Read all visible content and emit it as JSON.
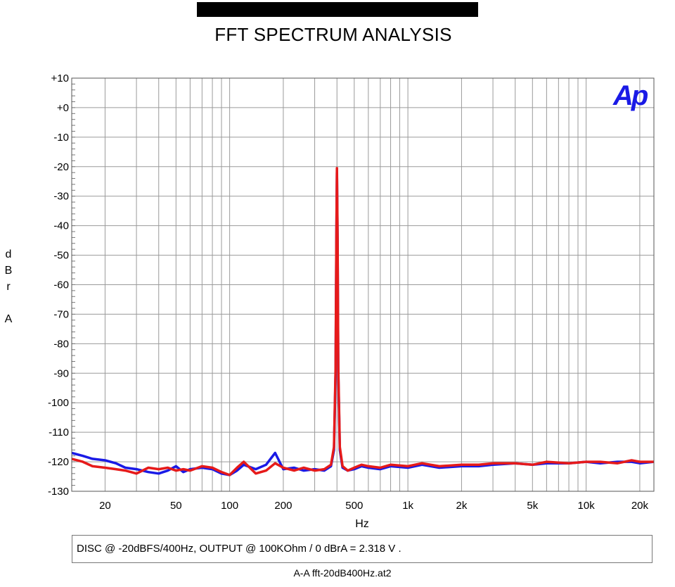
{
  "header": {
    "title": "FFT SPECTRUM ANALYSIS",
    "note": "DISC @ -20dBFS/400Hz, OUTPUT @ 100KOhm / 0 dBrA = 2.318 V .",
    "footer": "A-A fft-20dB400Hz.at2",
    "logo_text": "Ap"
  },
  "chart_data": {
    "type": "line",
    "title": "FFT SPECTRUM ANALYSIS",
    "xlabel": "Hz",
    "ylabel": "d\nB\nr\n\nA",
    "x_scale": "log",
    "xlim": [
      13,
      24000
    ],
    "ylim": [
      -130,
      10
    ],
    "grid": true,
    "x_ticks": [
      {
        "value": 20,
        "label": "20"
      },
      {
        "value": 50,
        "label": "50"
      },
      {
        "value": 100,
        "label": "100"
      },
      {
        "value": 200,
        "label": "200"
      },
      {
        "value": 500,
        "label": "500"
      },
      {
        "value": 1000,
        "label": "1k"
      },
      {
        "value": 2000,
        "label": "2k"
      },
      {
        "value": 5000,
        "label": "5k"
      },
      {
        "value": 10000,
        "label": "10k"
      },
      {
        "value": 20000,
        "label": "20k"
      }
    ],
    "y_ticks": [
      {
        "value": 10,
        "label": "+10"
      },
      {
        "value": 0,
        "label": "+0"
      },
      {
        "value": -10,
        "label": "-10"
      },
      {
        "value": -20,
        "label": "-20"
      },
      {
        "value": -30,
        "label": "-30"
      },
      {
        "value": -40,
        "label": "-40"
      },
      {
        "value": -50,
        "label": "-50"
      },
      {
        "value": -60,
        "label": "-60"
      },
      {
        "value": -70,
        "label": "-70"
      },
      {
        "value": -80,
        "label": "-80"
      },
      {
        "value": -90,
        "label": "-90"
      },
      {
        "value": -100,
        "label": "-100"
      },
      {
        "value": -110,
        "label": "-110"
      },
      {
        "value": -120,
        "label": "-120"
      },
      {
        "value": -130,
        "label": "-130"
      }
    ],
    "series": [
      {
        "color": "#1a1ae6",
        "x": [
          13,
          15,
          17,
          20,
          23,
          26,
          30,
          35,
          40,
          45,
          50,
          55,
          60,
          70,
          80,
          90,
          100,
          110,
          120,
          140,
          160,
          180,
          200,
          230,
          260,
          300,
          340,
          370,
          385,
          393,
          397,
          400,
          403,
          407,
          415,
          430,
          460,
          500,
          550,
          600,
          700,
          800,
          1000,
          1200,
          1500,
          2000,
          2500,
          3000,
          4000,
          5000,
          6000,
          8000,
          10000,
          12000,
          15000,
          18000,
          20000,
          24000
        ],
        "y": [
          -117,
          -118,
          -119,
          -119.5,
          -120.5,
          -122,
          -122.5,
          -123.5,
          -124,
          -123,
          -121.5,
          -123.5,
          -122.5,
          -122,
          -122.5,
          -124,
          -124.5,
          -123,
          -121,
          -122.5,
          -121,
          -117,
          -122.5,
          -122,
          -123,
          -122.5,
          -123,
          -121.5,
          -116,
          -90,
          -45,
          -22,
          -45,
          -90,
          -116,
          -122,
          -123,
          -122.5,
          -121.5,
          -122,
          -122.5,
          -121.5,
          -122,
          -121,
          -122,
          -121.5,
          -121.5,
          -121,
          -120.5,
          -121,
          -120.5,
          -120.5,
          -120,
          -120.5,
          -120,
          -120,
          -120.5,
          -120
        ]
      },
      {
        "color": "#e61a1a",
        "x": [
          13,
          15,
          17,
          20,
          23,
          26,
          30,
          35,
          40,
          45,
          50,
          55,
          60,
          70,
          80,
          90,
          100,
          110,
          120,
          140,
          160,
          180,
          200,
          230,
          260,
          300,
          340,
          370,
          385,
          393,
          397,
          400,
          403,
          407,
          415,
          430,
          460,
          500,
          550,
          600,
          700,
          800,
          1000,
          1200,
          1500,
          2000,
          2500,
          3000,
          4000,
          5000,
          6000,
          8000,
          10000,
          12000,
          15000,
          18000,
          20000,
          24000
        ],
        "y": [
          -119,
          -120,
          -121.5,
          -122,
          -122.5,
          -123,
          -124,
          -122,
          -122.5,
          -122,
          -123,
          -122.5,
          -123,
          -121.5,
          -122,
          -123.5,
          -124.5,
          -122,
          -120,
          -124,
          -123,
          -120.5,
          -122,
          -123,
          -122,
          -123,
          -122.5,
          -121,
          -115,
          -88,
          -44,
          -20.5,
          -44,
          -88,
          -115,
          -121.5,
          -123,
          -122,
          -121,
          -121.5,
          -122,
          -121,
          -121.5,
          -120.5,
          -121.5,
          -121,
          -121,
          -120.5,
          -120.5,
          -121,
          -120,
          -120.5,
          -120,
          -120,
          -120.5,
          -119.5,
          -120,
          -120
        ]
      }
    ]
  }
}
